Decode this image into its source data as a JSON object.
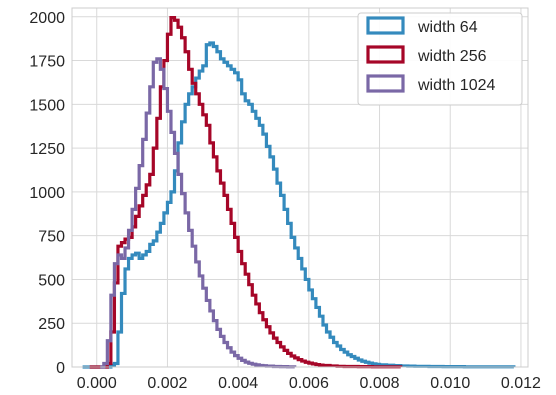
{
  "chart_data": {
    "type": "histogram",
    "xlim": [
      -0.0007,
      0.0122
    ],
    "ylim": [
      0,
      2050
    ],
    "x_ticks": [
      0.0,
      0.002,
      0.004,
      0.006,
      0.008,
      0.01,
      0.012
    ],
    "x_tick_labels": [
      "0.000",
      "0.002",
      "0.004",
      "0.006",
      "0.008",
      "0.010",
      "0.012"
    ],
    "y_ticks": [
      0,
      250,
      500,
      750,
      1000,
      1250,
      1500,
      1750,
      2000
    ],
    "y_tick_labels": [
      "0",
      "250",
      "500",
      "750",
      "1000",
      "1250",
      "1500",
      "1750",
      "2000"
    ],
    "grid": true,
    "legend_position": "top-right",
    "histtype": "step",
    "series": [
      {
        "name": "width 64",
        "color": "#348ABD",
        "points": [
          [
            -0.0004,
            0
          ],
          [
            0.0003,
            0
          ],
          [
            0.0004,
            10
          ],
          [
            0.0005,
            20
          ],
          [
            0.0006,
            200
          ],
          [
            0.0007,
            420
          ],
          [
            0.0008,
            560
          ],
          [
            0.0009,
            620
          ],
          [
            0.001,
            640
          ],
          [
            0.0011,
            650
          ],
          [
            0.0012,
            620
          ],
          [
            0.0013,
            640
          ],
          [
            0.0014,
            660
          ],
          [
            0.0015,
            700
          ],
          [
            0.0016,
            720
          ],
          [
            0.0017,
            770
          ],
          [
            0.0018,
            820
          ],
          [
            0.0019,
            880
          ],
          [
            0.002,
            940
          ],
          [
            0.0021,
            1000
          ],
          [
            0.0022,
            1120
          ],
          [
            0.0023,
            1280
          ],
          [
            0.0024,
            1400
          ],
          [
            0.0025,
            1500
          ],
          [
            0.0026,
            1560
          ],
          [
            0.0027,
            1600
          ],
          [
            0.0028,
            1650
          ],
          [
            0.0029,
            1690
          ],
          [
            0.003,
            1720
          ],
          [
            0.0031,
            1840
          ],
          [
            0.0032,
            1850
          ],
          [
            0.0033,
            1830
          ],
          [
            0.0034,
            1800
          ],
          [
            0.0035,
            1760
          ],
          [
            0.0036,
            1740
          ],
          [
            0.0037,
            1720
          ],
          [
            0.0038,
            1700
          ],
          [
            0.0039,
            1680
          ],
          [
            0.004,
            1640
          ],
          [
            0.0041,
            1560
          ],
          [
            0.0042,
            1520
          ],
          [
            0.0043,
            1500
          ],
          [
            0.0044,
            1460
          ],
          [
            0.0045,
            1420
          ],
          [
            0.0046,
            1380
          ],
          [
            0.0047,
            1330
          ],
          [
            0.0048,
            1260
          ],
          [
            0.0049,
            1200
          ],
          [
            0.005,
            1130
          ],
          [
            0.0051,
            1050
          ],
          [
            0.0052,
            980
          ],
          [
            0.0053,
            900
          ],
          [
            0.0054,
            820
          ],
          [
            0.0055,
            740
          ],
          [
            0.0056,
            680
          ],
          [
            0.0057,
            620
          ],
          [
            0.0058,
            560
          ],
          [
            0.0059,
            500
          ],
          [
            0.006,
            440
          ],
          [
            0.0061,
            390
          ],
          [
            0.0062,
            340
          ],
          [
            0.0063,
            290
          ],
          [
            0.0064,
            240
          ],
          [
            0.0065,
            200
          ],
          [
            0.0066,
            170
          ],
          [
            0.0067,
            140
          ],
          [
            0.0068,
            120
          ],
          [
            0.0069,
            100
          ],
          [
            0.007,
            85
          ],
          [
            0.0071,
            70
          ],
          [
            0.0072,
            60
          ],
          [
            0.0073,
            50
          ],
          [
            0.0074,
            40
          ],
          [
            0.0075,
            33
          ],
          [
            0.0076,
            27
          ],
          [
            0.0077,
            22
          ],
          [
            0.0078,
            18
          ],
          [
            0.0079,
            15
          ],
          [
            0.008,
            12
          ],
          [
            0.0082,
            10
          ],
          [
            0.0084,
            8
          ],
          [
            0.0086,
            6
          ],
          [
            0.0088,
            5
          ],
          [
            0.009,
            4
          ],
          [
            0.0094,
            3
          ],
          [
            0.0098,
            2
          ],
          [
            0.0104,
            1
          ],
          [
            0.011,
            1
          ],
          [
            0.0118,
            0
          ]
        ]
      },
      {
        "name": "width 256",
        "color": "#A60628",
        "points": [
          [
            -0.0002,
            0
          ],
          [
            0.0002,
            0
          ],
          [
            0.0003,
            20
          ],
          [
            0.0004,
            200
          ],
          [
            0.0005,
            480
          ],
          [
            0.0006,
            690
          ],
          [
            0.0007,
            710
          ],
          [
            0.0008,
            730
          ],
          [
            0.0009,
            740
          ],
          [
            0.001,
            800
          ],
          [
            0.0011,
            860
          ],
          [
            0.0012,
            920
          ],
          [
            0.0013,
            980
          ],
          [
            0.0014,
            1040
          ],
          [
            0.0015,
            1100
          ],
          [
            0.0016,
            1250
          ],
          [
            0.0017,
            1420
          ],
          [
            0.0018,
            1600
          ],
          [
            0.0019,
            1750
          ],
          [
            0.002,
            1900
          ],
          [
            0.0021,
            1995
          ],
          [
            0.0022,
            1980
          ],
          [
            0.0023,
            1940
          ],
          [
            0.0024,
            1880
          ],
          [
            0.0025,
            1800
          ],
          [
            0.0026,
            1700
          ],
          [
            0.0027,
            1620
          ],
          [
            0.0028,
            1560
          ],
          [
            0.0029,
            1500
          ],
          [
            0.003,
            1440
          ],
          [
            0.0031,
            1380
          ],
          [
            0.0032,
            1280
          ],
          [
            0.0033,
            1200
          ],
          [
            0.0034,
            1120
          ],
          [
            0.0035,
            1050
          ],
          [
            0.0036,
            980
          ],
          [
            0.0037,
            900
          ],
          [
            0.0038,
            820
          ],
          [
            0.0039,
            740
          ],
          [
            0.004,
            660
          ],
          [
            0.0041,
            590
          ],
          [
            0.0042,
            530
          ],
          [
            0.0043,
            470
          ],
          [
            0.0044,
            410
          ],
          [
            0.0045,
            360
          ],
          [
            0.0046,
            310
          ],
          [
            0.0047,
            270
          ],
          [
            0.0048,
            230
          ],
          [
            0.0049,
            195
          ],
          [
            0.005,
            165
          ],
          [
            0.0051,
            140
          ],
          [
            0.0052,
            115
          ],
          [
            0.0053,
            95
          ],
          [
            0.0054,
            78
          ],
          [
            0.0055,
            63
          ],
          [
            0.0056,
            52
          ],
          [
            0.0057,
            42
          ],
          [
            0.0058,
            34
          ],
          [
            0.0059,
            27
          ],
          [
            0.006,
            22
          ],
          [
            0.0061,
            18
          ],
          [
            0.0062,
            14
          ],
          [
            0.0063,
            11
          ],
          [
            0.0064,
            9
          ],
          [
            0.0066,
            6
          ],
          [
            0.0068,
            4
          ],
          [
            0.007,
            3
          ],
          [
            0.0074,
            2
          ],
          [
            0.0078,
            1
          ],
          [
            0.0082,
            1
          ],
          [
            0.0086,
            0
          ]
        ]
      },
      {
        "name": "width 1024",
        "color": "#7A68A6",
        "points": [
          [
            0.0001,
            0
          ],
          [
            0.0002,
            20
          ],
          [
            0.0003,
            150
          ],
          [
            0.0004,
            410
          ],
          [
            0.0005,
            590
          ],
          [
            0.0006,
            640
          ],
          [
            0.0007,
            620
          ],
          [
            0.0008,
            680
          ],
          [
            0.0009,
            780
          ],
          [
            0.001,
            900
          ],
          [
            0.0011,
            1020
          ],
          [
            0.0012,
            1150
          ],
          [
            0.0013,
            1300
          ],
          [
            0.0014,
            1450
          ],
          [
            0.0015,
            1600
          ],
          [
            0.0016,
            1740
          ],
          [
            0.0017,
            1760
          ],
          [
            0.0018,
            1700
          ],
          [
            0.0019,
            1590
          ],
          [
            0.002,
            1460
          ],
          [
            0.0021,
            1340
          ],
          [
            0.0022,
            1220
          ],
          [
            0.0023,
            1100
          ],
          [
            0.0024,
            990
          ],
          [
            0.0025,
            880
          ],
          [
            0.0026,
            780
          ],
          [
            0.0027,
            690
          ],
          [
            0.0028,
            600
          ],
          [
            0.0029,
            520
          ],
          [
            0.003,
            450
          ],
          [
            0.0031,
            380
          ],
          [
            0.0032,
            320
          ],
          [
            0.0033,
            265
          ],
          [
            0.0034,
            215
          ],
          [
            0.0035,
            175
          ],
          [
            0.0036,
            140
          ],
          [
            0.0037,
            110
          ],
          [
            0.0038,
            85
          ],
          [
            0.0039,
            65
          ],
          [
            0.004,
            50
          ],
          [
            0.0041,
            38
          ],
          [
            0.0042,
            28
          ],
          [
            0.0043,
            21
          ],
          [
            0.0044,
            16
          ],
          [
            0.0045,
            12
          ],
          [
            0.0046,
            9
          ],
          [
            0.0047,
            7
          ],
          [
            0.0048,
            5
          ],
          [
            0.005,
            3
          ],
          [
            0.0052,
            2
          ],
          [
            0.0054,
            1
          ],
          [
            0.0056,
            0
          ]
        ]
      }
    ]
  }
}
